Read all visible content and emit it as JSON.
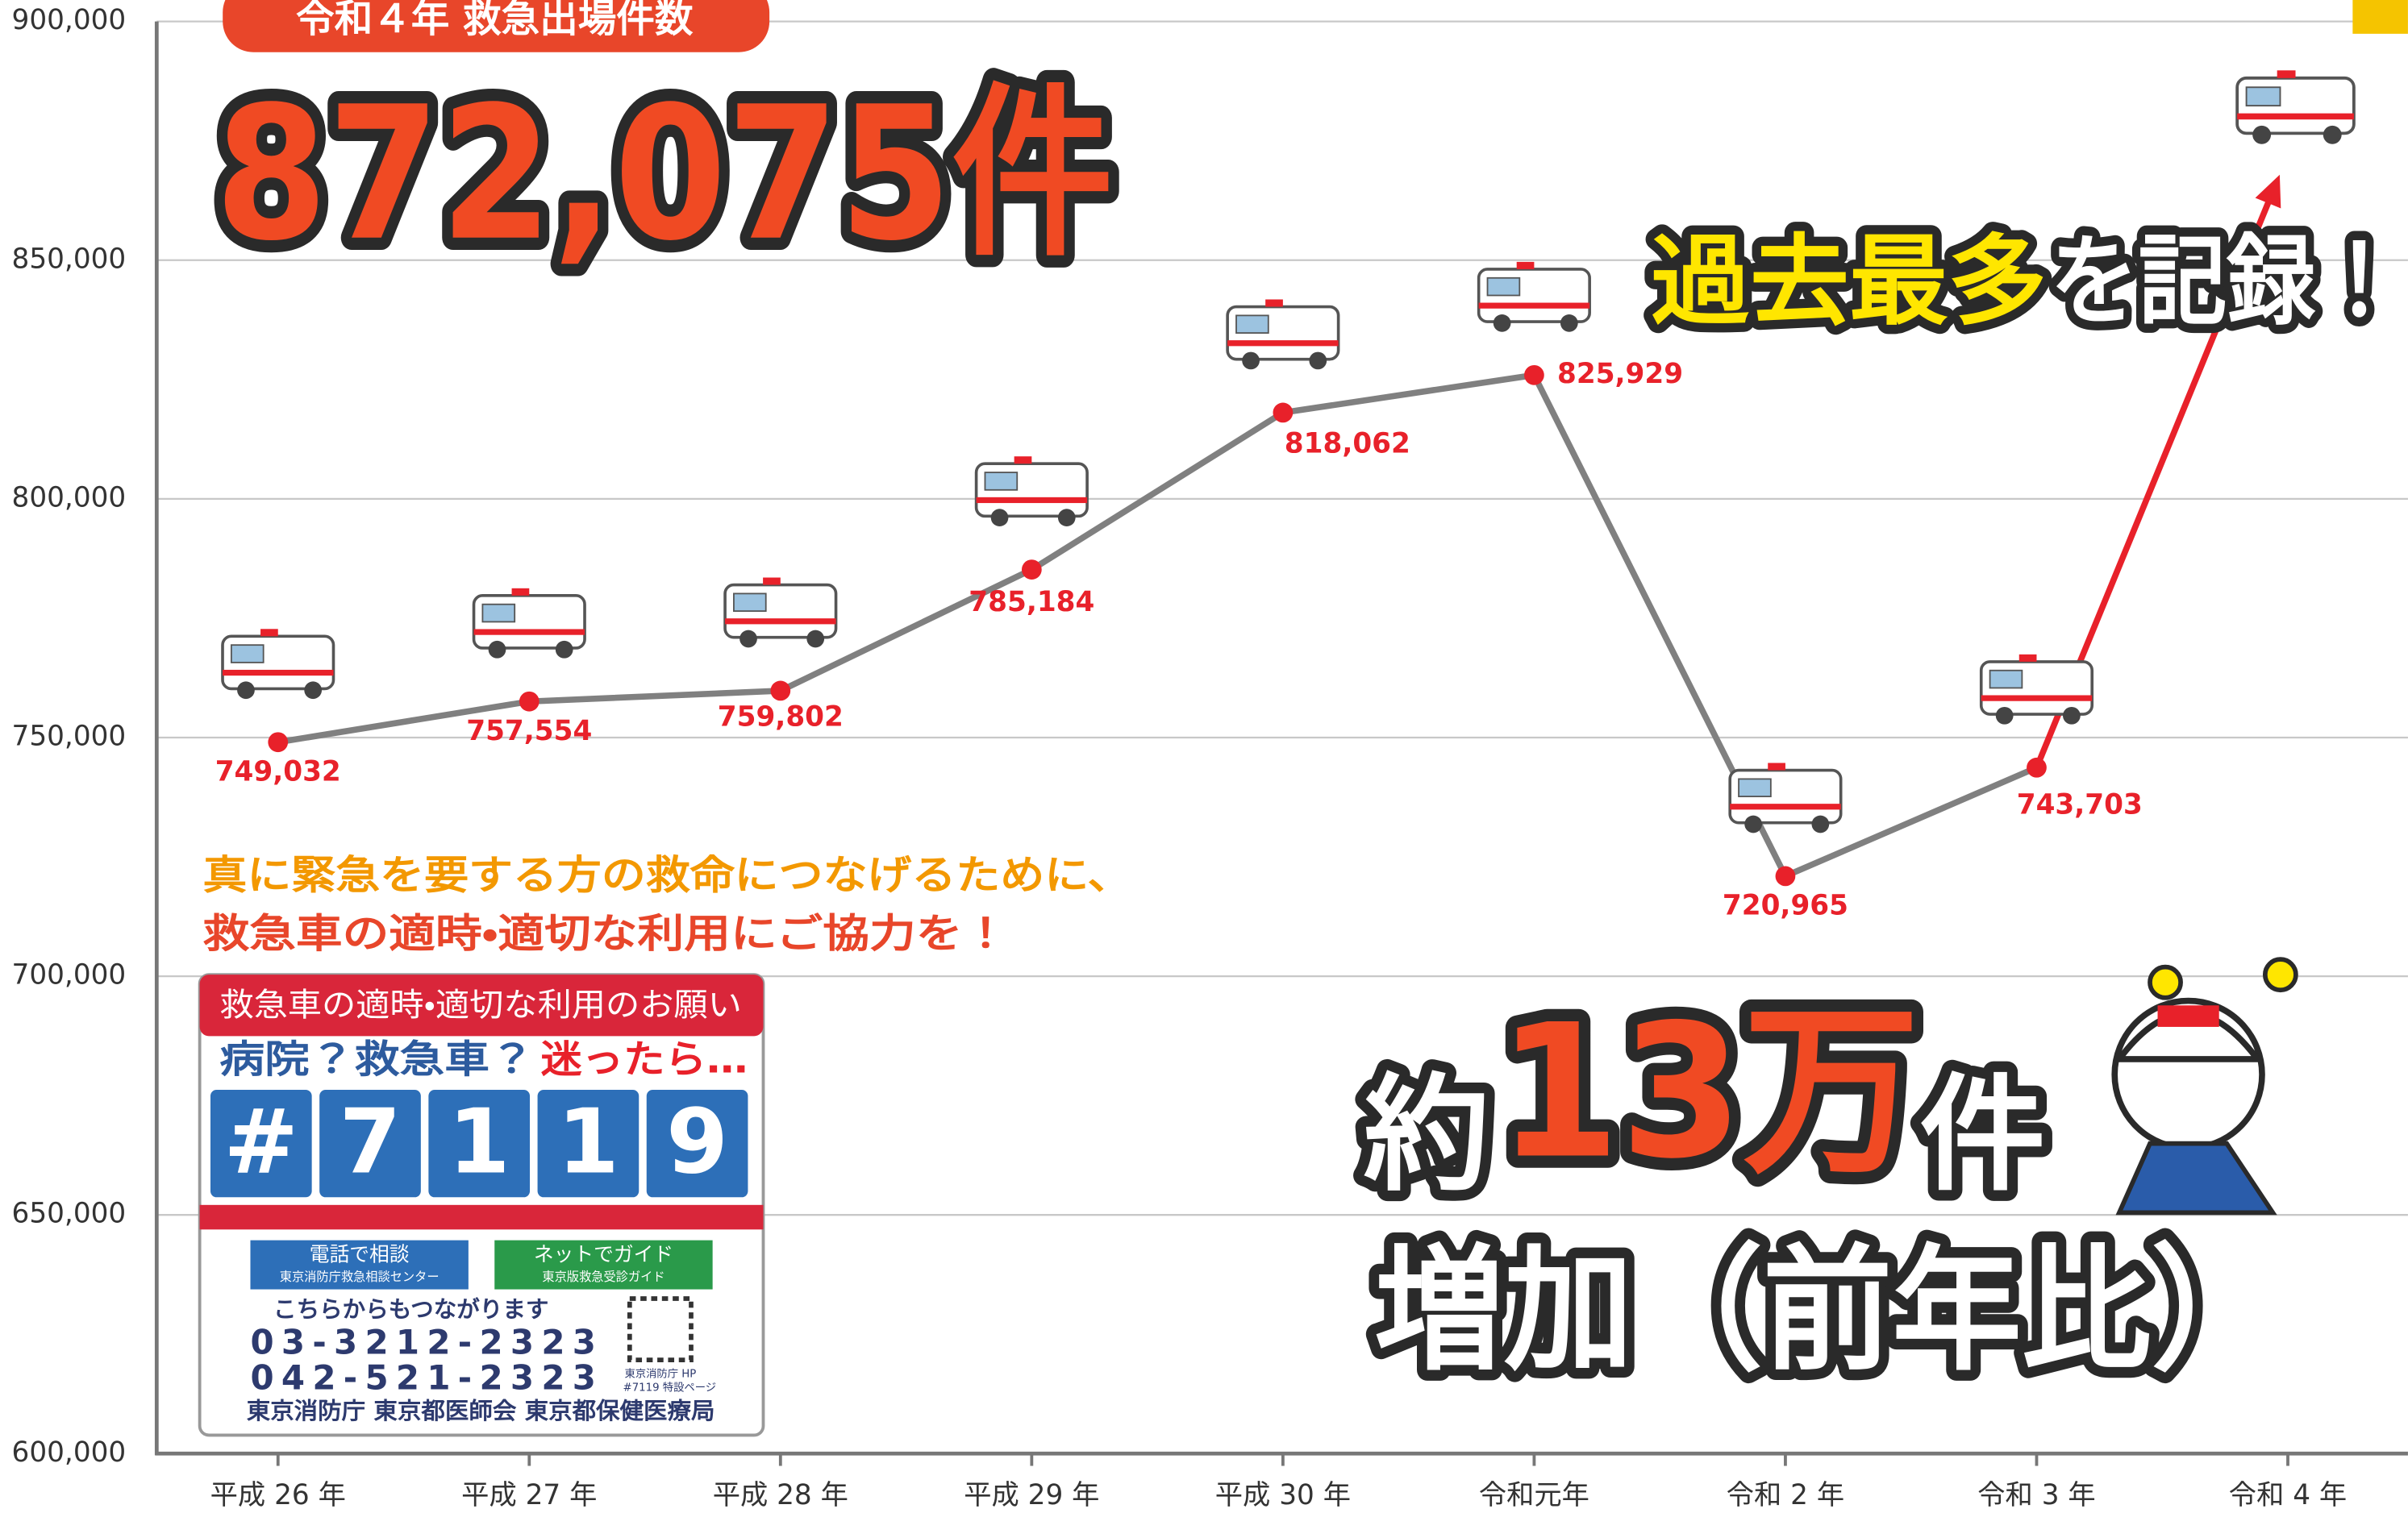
{
  "chart_data": {
    "type": "line",
    "title": "令和４年 救急出場件数",
    "headline": "872,075件",
    "record_highlight": "過去最多",
    "record_rest": "を記録！",
    "increase_prefix": "約",
    "increase_number": "13万",
    "increase_suffix": "件",
    "increase_note": "増加（前年比）",
    "message": [
      "真に緊急を要する方の救命につなげるために、",
      "救急車の適時・適切な利用にご協力を！"
    ],
    "categories": [
      "平成 26 年",
      "平成 27 年",
      "平成 28 年",
      "平成 29 年",
      "平成 30 年",
      "令和元年",
      "令和 2 年",
      "令和 3 年",
      "令和 4 年"
    ],
    "series": [
      {
        "color": "#808080",
        "marker_color": "#e8212a",
        "highlight_color": "#e8212a",
        "values": [
          749032,
          757554,
          759802,
          785184,
          818062,
          825929,
          720965,
          743703,
          872075
        ],
        "value_labels": [
          "749,032",
          "757,554",
          "759,802",
          "785,184",
          "818,062",
          "825,929",
          "720,965",
          "743,703",
          null
        ]
      }
    ],
    "ylim": [
      600000,
      900000
    ],
    "yticks": [
      {
        "value": 600000,
        "label": "600,000"
      },
      {
        "value": 650000,
        "label": "650,000"
      },
      {
        "value": 700000,
        "label": "700,000"
      },
      {
        "value": 750000,
        "label": "750,000"
      },
      {
        "value": 800000,
        "label": "800,000"
      },
      {
        "value": 850000,
        "label": "850,000"
      },
      {
        "value": 900000,
        "label": "900,000"
      }
    ],
    "grid": true
  },
  "panel": {
    "header": "救急車の適時・適切な利用のお願い",
    "question": "病院？救急車？",
    "question_red": "迷ったら…",
    "number_chars": [
      "#",
      "7",
      "1",
      "1",
      "9"
    ],
    "phone_title": "電話で相談",
    "phone_sub": "東京消防庁救急相談センター",
    "net_title": "ネットでガイド",
    "net_sub": "東京版救急受診ガイド",
    "connect": "こちらからもつながります",
    "tel1": "03-3212-2323",
    "tel2": "042-521-2323",
    "hp1": "東京消防庁 HP",
    "hp2": "#7119 特設ページ",
    "orgs": "東京消防庁 東京都医師会 東京都保健医療局"
  }
}
